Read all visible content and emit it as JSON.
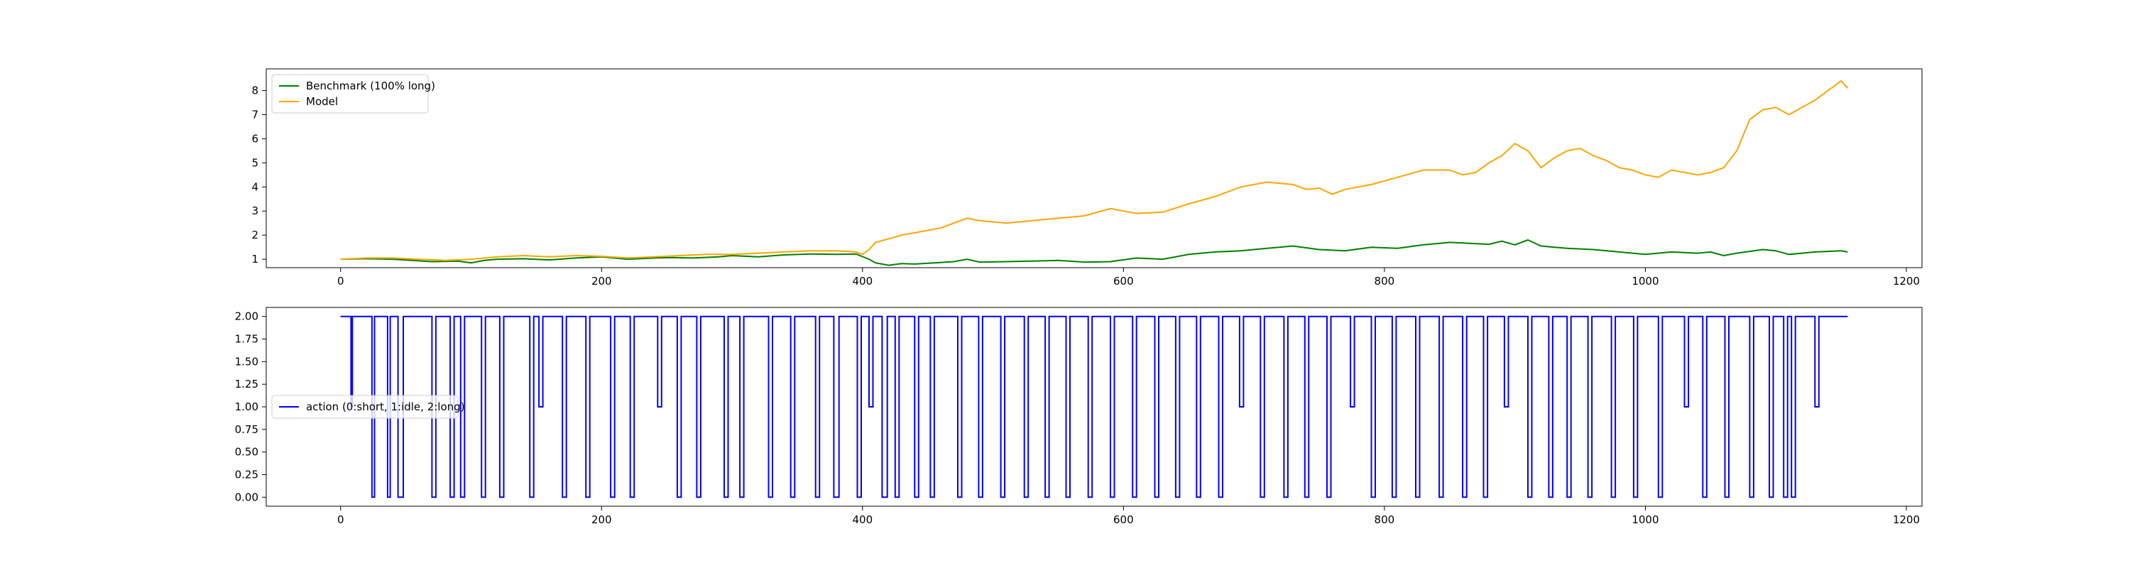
{
  "chart_data": [
    {
      "type": "line",
      "title": "",
      "xlabel": "",
      "ylabel": "",
      "xlim": [
        -57,
        1212
      ],
      "ylim": [
        0.65,
        8.9
      ],
      "x_ticks": [
        0,
        200,
        400,
        600,
        800,
        1000,
        1200
      ],
      "y_ticks": [
        1,
        2,
        3,
        4,
        5,
        6,
        7,
        8
      ],
      "legend": {
        "placement": "upper-left"
      },
      "grid": false,
      "series": [
        {
          "name": "Benchmark (100% long)",
          "color": "#008000",
          "x": [
            0,
            20,
            40,
            55,
            70,
            90,
            100,
            110,
            120,
            140,
            160,
            180,
            200,
            220,
            240,
            255,
            270,
            290,
            300,
            320,
            340,
            360,
            380,
            395,
            405,
            410,
            420,
            430,
            440,
            455,
            470,
            480,
            490,
            510,
            530,
            550,
            570,
            590,
            610,
            630,
            650,
            670,
            690,
            710,
            730,
            750,
            770,
            790,
            810,
            830,
            850,
            870,
            880,
            890,
            900,
            910,
            920,
            940,
            960,
            980,
            1000,
            1020,
            1040,
            1050,
            1060,
            1070,
            1090,
            1100,
            1110,
            1130,
            1150,
            1155
          ],
          "y": [
            1.0,
            1.02,
            1.0,
            0.95,
            0.9,
            0.92,
            0.85,
            0.95,
            1.0,
            1.02,
            0.97,
            1.05,
            1.1,
            1.0,
            1.05,
            1.07,
            1.05,
            1.1,
            1.15,
            1.1,
            1.18,
            1.22,
            1.2,
            1.22,
            1.0,
            0.85,
            0.75,
            0.82,
            0.8,
            0.85,
            0.9,
            1.0,
            0.88,
            0.9,
            0.92,
            0.95,
            0.88,
            0.9,
            1.05,
            1.0,
            1.2,
            1.3,
            1.35,
            1.45,
            1.55,
            1.4,
            1.35,
            1.5,
            1.45,
            1.6,
            1.7,
            1.65,
            1.62,
            1.75,
            1.6,
            1.8,
            1.55,
            1.45,
            1.4,
            1.3,
            1.2,
            1.3,
            1.25,
            1.3,
            1.15,
            1.25,
            1.4,
            1.35,
            1.2,
            1.3,
            1.35,
            1.3
          ]
        },
        {
          "name": "Model",
          "color": "#ffa500",
          "x": [
            0,
            20,
            40,
            60,
            80,
            100,
            120,
            140,
            160,
            180,
            200,
            220,
            240,
            260,
            280,
            300,
            320,
            340,
            360,
            380,
            395,
            400,
            405,
            410,
            420,
            430,
            440,
            450,
            460,
            470,
            480,
            490,
            510,
            530,
            550,
            570,
            590,
            600,
            610,
            630,
            650,
            670,
            690,
            710,
            730,
            740,
            750,
            760,
            770,
            790,
            810,
            830,
            850,
            860,
            870,
            880,
            890,
            900,
            910,
            920,
            930,
            940,
            950,
            960,
            970,
            980,
            990,
            1000,
            1010,
            1020,
            1030,
            1040,
            1050,
            1060,
            1070,
            1080,
            1090,
            1100,
            1110,
            1120,
            1130,
            1140,
            1150,
            1155
          ],
          "y": [
            1.0,
            1.05,
            1.05,
            1.0,
            0.95,
            1.0,
            1.1,
            1.15,
            1.1,
            1.15,
            1.12,
            1.05,
            1.1,
            1.15,
            1.2,
            1.2,
            1.25,
            1.3,
            1.35,
            1.35,
            1.3,
            1.2,
            1.4,
            1.7,
            1.85,
            2.0,
            2.1,
            2.2,
            2.3,
            2.5,
            2.7,
            2.6,
            2.5,
            2.6,
            2.7,
            2.8,
            3.1,
            3.0,
            2.9,
            2.95,
            3.3,
            3.6,
            4.0,
            4.2,
            4.1,
            3.9,
            3.95,
            3.7,
            3.9,
            4.1,
            4.4,
            4.7,
            4.7,
            4.5,
            4.6,
            5.0,
            5.3,
            5.8,
            5.5,
            4.8,
            5.2,
            5.5,
            5.6,
            5.3,
            5.1,
            4.8,
            4.7,
            4.5,
            4.4,
            4.7,
            4.6,
            4.5,
            4.6,
            4.8,
            5.5,
            6.8,
            7.2,
            7.3,
            7.0,
            7.3,
            7.6,
            8.0,
            8.4,
            8.1
          ]
        }
      ]
    },
    {
      "type": "line",
      "title": "",
      "xlabel": "",
      "ylabel": "",
      "xlim": [
        -57,
        1212
      ],
      "ylim": [
        -0.1,
        2.1
      ],
      "x_ticks": [
        0,
        200,
        400,
        600,
        800,
        1000,
        1200
      ],
      "y_ticks": [
        "0.00",
        "0.25",
        "0.50",
        "0.75",
        "1.00",
        "1.25",
        "1.50",
        "1.75",
        "2.00"
      ],
      "legend": {
        "placement": "center-left"
      },
      "grid": false,
      "series": [
        {
          "name": "action (0:short, 1:idle, 2:long)",
          "color": "#0000ff",
          "drawstyle": "steps-post",
          "x": [
            0,
            8,
            9,
            24,
            26,
            36,
            38,
            44,
            48,
            70,
            73,
            84,
            87,
            92,
            95,
            108,
            111,
            122,
            125,
            145,
            148,
            152,
            155,
            170,
            173,
            188,
            191,
            207,
            210,
            222,
            225,
            243,
            246,
            258,
            261,
            273,
            276,
            294,
            297,
            306,
            309,
            328,
            331,
            345,
            348,
            364,
            367,
            378,
            382,
            396,
            399,
            405,
            408,
            415,
            419,
            425,
            428,
            440,
            443,
            452,
            455,
            473,
            476,
            489,
            492,
            506,
            509,
            524,
            527,
            540,
            543,
            556,
            559,
            573,
            576,
            590,
            593,
            607,
            610,
            624,
            627,
            640,
            643,
            656,
            659,
            673,
            676,
            689,
            692,
            705,
            708,
            723,
            726,
            739,
            742,
            756,
            759,
            774,
            777,
            790,
            793,
            806,
            809,
            824,
            827,
            842,
            845,
            860,
            863,
            876,
            879,
            892,
            895,
            910,
            913,
            926,
            929,
            940,
            943,
            956,
            959,
            974,
            977,
            991,
            994,
            1010,
            1013,
            1030,
            1033,
            1044,
            1047,
            1061,
            1064,
            1080,
            1083,
            1095,
            1098,
            1106,
            1109,
            1112,
            1115,
            1130,
            1133,
            1155
          ],
          "y": [
            2,
            1,
            2,
            0,
            2,
            0,
            2,
            0,
            2,
            0,
            2,
            0,
            2,
            0,
            2,
            0,
            2,
            0,
            2,
            0,
            2,
            1,
            2,
            0,
            2,
            0,
            2,
            0,
            2,
            0,
            2,
            1,
            2,
            0,
            2,
            0,
            2,
            0,
            2,
            0,
            2,
            0,
            2,
            0,
            2,
            0,
            2,
            0,
            2,
            0,
            2,
            1,
            2,
            0,
            2,
            0,
            2,
            0,
            2,
            0,
            2,
            0,
            2,
            0,
            2,
            0,
            2,
            0,
            2,
            0,
            2,
            0,
            2,
            0,
            2,
            0,
            2,
            0,
            2,
            0,
            2,
            0,
            2,
            0,
            2,
            0,
            2,
            1,
            2,
            0,
            2,
            0,
            2,
            0,
            2,
            0,
            2,
            1,
            2,
            0,
            2,
            0,
            2,
            0,
            2,
            0,
            2,
            0,
            2,
            0,
            2,
            1,
            2,
            0,
            2,
            0,
            2,
            0,
            2,
            0,
            2,
            0,
            2,
            0,
            2,
            0,
            2,
            1,
            2,
            0,
            2,
            0,
            2,
            0,
            2,
            0,
            2,
            0,
            2,
            0,
            2,
            1,
            2,
            2
          ]
        }
      ]
    }
  ]
}
